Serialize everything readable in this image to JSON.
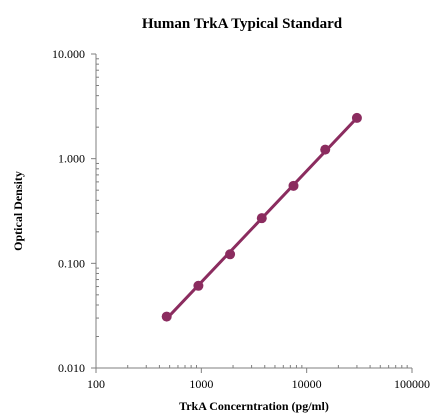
{
  "chart_data": {
    "type": "scatter",
    "title": "Human TrkA Typical Standard",
    "xlabel": "TrkA Concerntration (pg/ml)",
    "ylabel": "Optical Density",
    "x_scale": "log",
    "y_scale": "log",
    "xlim": [
      100,
      100000
    ],
    "ylim": [
      0.01,
      10
    ],
    "x_ticks": [
      100,
      1000,
      10000,
      100000
    ],
    "x_tick_labels": [
      "100",
      "1000",
      "10000",
      "100000"
    ],
    "y_ticks": [
      0.01,
      0.1,
      1,
      10
    ],
    "y_tick_labels": [
      "0.010",
      "0.100",
      "1.000",
      "10.000"
    ],
    "grid": false,
    "series": [
      {
        "x": [
          469,
          938,
          1875,
          3750,
          7500,
          15000,
          30000
        ],
        "y": [
          0.031,
          0.061,
          0.122,
          0.27,
          0.55,
          1.22,
          2.45
        ],
        "color": "#8b2c5f",
        "line": "fit",
        "marker": "circle"
      }
    ]
  }
}
